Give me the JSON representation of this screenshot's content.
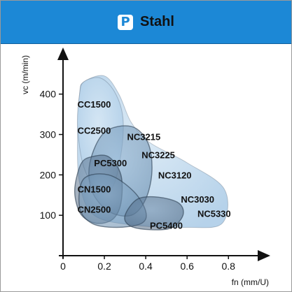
{
  "header": {
    "badge": "P",
    "title": "Stahl",
    "color": "#1c88d6"
  },
  "chart_data": {
    "type": "scatter",
    "xlabel": "fn (mm/U)",
    "ylabel": "vc (m/min)",
    "xlim": [
      0,
      0.85
    ],
    "ylim": [
      0,
      460
    ],
    "x_ticks": [
      "0",
      "0.2",
      "0.4",
      "0.6",
      "0.8"
    ],
    "x_tick_values": [
      0,
      0.2,
      0.4,
      0.6,
      0.8
    ],
    "y_ticks": [
      "100",
      "200",
      "300",
      "400"
    ],
    "y_tick_values": [
      100,
      200,
      300,
      400
    ],
    "grid": false,
    "regions": [
      {
        "name": "CC1500",
        "tone": "light",
        "points": [
          [
            0.1,
            430
          ],
          [
            0.2,
            445
          ],
          [
            0.27,
            400
          ],
          [
            0.33,
            330
          ],
          [
            0.42,
            280
          ],
          [
            0.6,
            230
          ],
          [
            0.78,
            165
          ],
          [
            0.77,
            80
          ],
          [
            0.6,
            70
          ],
          [
            0.35,
            75
          ],
          [
            0.15,
            100
          ],
          [
            0.08,
            180
          ],
          [
            0.07,
            300
          ],
          [
            0.08,
            400
          ]
        ]
      },
      {
        "name": "CC2500",
        "tone": "light",
        "points": [
          [
            0.08,
            400
          ],
          [
            0.1,
            430
          ],
          [
            0.18,
            440
          ],
          [
            0.25,
            405
          ],
          [
            0.29,
            340
          ],
          [
            0.28,
            250
          ],
          [
            0.24,
            170
          ],
          [
            0.17,
            160
          ],
          [
            0.1,
            220
          ],
          [
            0.07,
            320
          ]
        ]
      },
      {
        "name": "PC5300",
        "tone": "medium",
        "points": [
          [
            0.13,
            230
          ],
          [
            0.2,
            305
          ],
          [
            0.33,
            320
          ],
          [
            0.41,
            280
          ],
          [
            0.43,
            210
          ],
          [
            0.4,
            140
          ],
          [
            0.33,
            100
          ],
          [
            0.22,
            110
          ],
          [
            0.14,
            160
          ]
        ]
      },
      {
        "name": "CN1500",
        "tone": "dark",
        "points": [
          [
            0.06,
            180
          ],
          [
            0.09,
            230
          ],
          [
            0.14,
            245
          ],
          [
            0.22,
            245
          ],
          [
            0.28,
            200
          ],
          [
            0.28,
            130
          ],
          [
            0.24,
            90
          ],
          [
            0.16,
            80
          ],
          [
            0.09,
            100
          ],
          [
            0.06,
            140
          ]
        ]
      },
      {
        "name": "CN2500",
        "tone": "medium",
        "points": [
          [
            0.1,
            190
          ],
          [
            0.22,
            200
          ],
          [
            0.34,
            160
          ],
          [
            0.4,
            110
          ],
          [
            0.38,
            80
          ],
          [
            0.26,
            70
          ],
          [
            0.14,
            80
          ],
          [
            0.08,
            120
          ]
        ]
      },
      {
        "name": "PC5400",
        "tone": "dark",
        "points": [
          [
            0.3,
            100
          ],
          [
            0.36,
            140
          ],
          [
            0.46,
            145
          ],
          [
            0.56,
            130
          ],
          [
            0.58,
            100
          ],
          [
            0.52,
            68
          ],
          [
            0.4,
            65
          ],
          [
            0.32,
            75
          ]
        ]
      }
    ],
    "labels": [
      {
        "text": "CC1500",
        "x": 0.07,
        "y": 375
      },
      {
        "text": "CC2500",
        "x": 0.07,
        "y": 310
      },
      {
        "text": "NC3215",
        "x": 0.31,
        "y": 295
      },
      {
        "text": "NC3225",
        "x": 0.38,
        "y": 250
      },
      {
        "text": "PC5300",
        "x": 0.15,
        "y": 230
      },
      {
        "text": "NC3120",
        "x": 0.46,
        "y": 200
      },
      {
        "text": "CN1500",
        "x": 0.07,
        "y": 165
      },
      {
        "text": "NC3030",
        "x": 0.57,
        "y": 140
      },
      {
        "text": "CN2500",
        "x": 0.07,
        "y": 115
      },
      {
        "text": "NC5330",
        "x": 0.65,
        "y": 105
      },
      {
        "text": "PC5400",
        "x": 0.42,
        "y": 75
      }
    ],
    "colors": {
      "light": "#a9cae6",
      "medium": "#6f94b5",
      "dark": "#45607d",
      "stroke": "#2c3d50"
    }
  }
}
